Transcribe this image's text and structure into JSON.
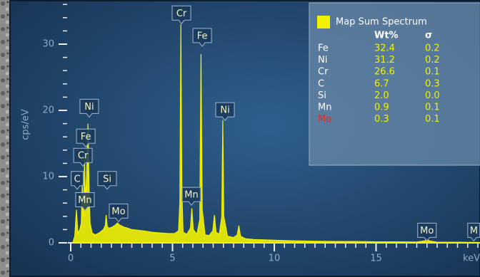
{
  "chart_data": {
    "type": "area",
    "x_label": "keV",
    "y_label": "cps/eV",
    "xlim": [
      0,
      20.2
    ],
    "ylim": [
      0,
      36.2
    ],
    "xticks": [
      0,
      5,
      10,
      15
    ],
    "xminorticks": [
      0.5,
      1,
      1.5,
      2,
      2.5,
      3,
      3.5,
      4,
      4.5,
      5.5,
      6,
      6.5,
      7,
      7.5,
      8,
      8.5,
      9,
      9.5,
      10.5,
      11,
      11.5,
      12,
      12.5,
      13,
      13.5,
      14,
      14.5,
      15.5,
      16,
      16.5,
      17,
      17.5,
      18,
      18.5,
      19,
      19.5,
      20
    ],
    "yticks": [
      0,
      10,
      20,
      30
    ],
    "yminorticks": [
      2,
      4,
      6,
      8,
      12,
      14,
      16,
      18,
      22,
      24,
      26,
      28,
      32,
      34,
      36
    ],
    "grid": false,
    "x": [
      0.1,
      0.2,
      0.28,
      0.35,
      0.45,
      0.52,
      0.57,
      0.62,
      0.68,
      0.72,
      0.78,
      0.85,
      0.9,
      0.95,
      1.05,
      1.2,
      1.4,
      1.6,
      1.7,
      1.74,
      1.8,
      1.9,
      2.05,
      2.2,
      2.29,
      2.4,
      2.6,
      2.8,
      3.0,
      3.3,
      3.6,
      4.0,
      4.4,
      4.8,
      5.1,
      5.3,
      5.36,
      5.41,
      5.46,
      5.52,
      5.7,
      5.88,
      5.95,
      6.02,
      6.2,
      6.34,
      6.4,
      6.46,
      6.6,
      6.8,
      6.98,
      7.06,
      7.14,
      7.3,
      7.42,
      7.47,
      7.52,
      7.7,
      8.0,
      8.18,
      8.26,
      8.34,
      8.6,
      9.0,
      10,
      11,
      12,
      13,
      14,
      15,
      16,
      17,
      17.4,
      17.5,
      17.6,
      18,
      19,
      20.2
    ],
    "series": [
      {
        "name": "Map Sum Spectrum",
        "color": "#f2f200",
        "values": [
          0,
          1,
          5,
          1.5,
          2,
          3,
          9,
          4,
          13,
          6,
          10,
          18,
          8,
          3,
          1.5,
          1.2,
          1.5,
          2.0,
          2.6,
          4.2,
          2.4,
          2.2,
          2.4,
          2.7,
          3.0,
          2.7,
          2.4,
          2.2,
          2.0,
          1.9,
          1.8,
          1.6,
          1.5,
          1.4,
          1.4,
          1.8,
          6,
          33,
          8,
          1.6,
          1.3,
          2.2,
          5.2,
          2.0,
          1.3,
          3.5,
          28.5,
          5,
          1.2,
          1.1,
          1.8,
          4.2,
          1.6,
          1.3,
          4,
          18.5,
          4,
          1.0,
          0.8,
          1.2,
          2.6,
          1.0,
          0.6,
          0.5,
          0.4,
          0.3,
          0.25,
          0.2,
          0.2,
          0.15,
          0.15,
          0.12,
          0.3,
          0.6,
          0.3,
          0.1,
          0.1,
          0.05
        ]
      }
    ],
    "annotations": [
      {
        "text": "Cr",
        "x": 5.44,
        "y": 34.7
      },
      {
        "text": "Fe",
        "x": 6.46,
        "y": 31.3
      },
      {
        "text": "Ni",
        "x": 7.58,
        "y": 20.1
      },
      {
        "text": "Ni",
        "x": 0.91,
        "y": 20.6
      },
      {
        "text": "Fe",
        "x": 0.74,
        "y": 16.1
      },
      {
        "text": "Cr",
        "x": 0.6,
        "y": 13.2
      },
      {
        "text": "C",
        "x": 0.32,
        "y": 9.7
      },
      {
        "text": "Mn",
        "x": 0.7,
        "y": 6.5
      },
      {
        "text": "Si",
        "x": 1.79,
        "y": 9.7
      },
      {
        "text": "Mo",
        "x": 2.35,
        "y": 4.8
      },
      {
        "text": "Mn",
        "x": 5.93,
        "y": 7.3
      },
      {
        "text": "Mo",
        "x": 17.5,
        "y": 1.9
      },
      {
        "text": "M",
        "x": 19.8,
        "y": 1.9
      }
    ],
    "legend_table": {
      "columns": [
        "Wt%",
        "σ"
      ],
      "rows": [
        {
          "element": "Fe",
          "wt": "32.4",
          "sigma": "0.2"
        },
        {
          "element": "Ni",
          "wt": "31.2",
          "sigma": "0.2"
        },
        {
          "element": "Cr",
          "wt": "26.6",
          "sigma": "0.1"
        },
        {
          "element": "C",
          "wt": "6.7",
          "sigma": "0.3"
        },
        {
          "element": "Si",
          "wt": "2.0",
          "sigma": "0.0"
        },
        {
          "element": "Mn",
          "wt": "0.9",
          "sigma": "0.1"
        },
        {
          "element": "Mo",
          "wt": "0.3",
          "sigma": "0.1",
          "label_color": "#e8262a"
        }
      ]
    }
  }
}
